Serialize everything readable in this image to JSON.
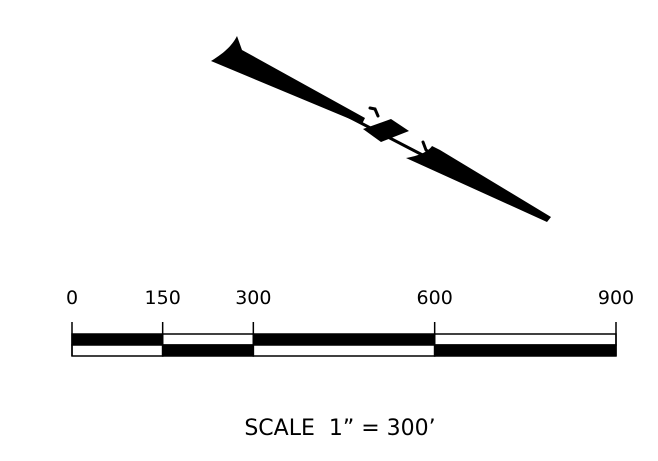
{
  "scale_bar": {
    "ticks": [
      {
        "label": "0",
        "value": 0
      },
      {
        "label": "150",
        "value": 150
      },
      {
        "label": "300",
        "value": 300
      },
      {
        "label": "600",
        "value": 600
      },
      {
        "label": "900",
        "value": 900
      }
    ],
    "caption": "SCALE  1” = 300’"
  },
  "colors": {
    "ink": "#000000",
    "background": "#ffffff"
  }
}
